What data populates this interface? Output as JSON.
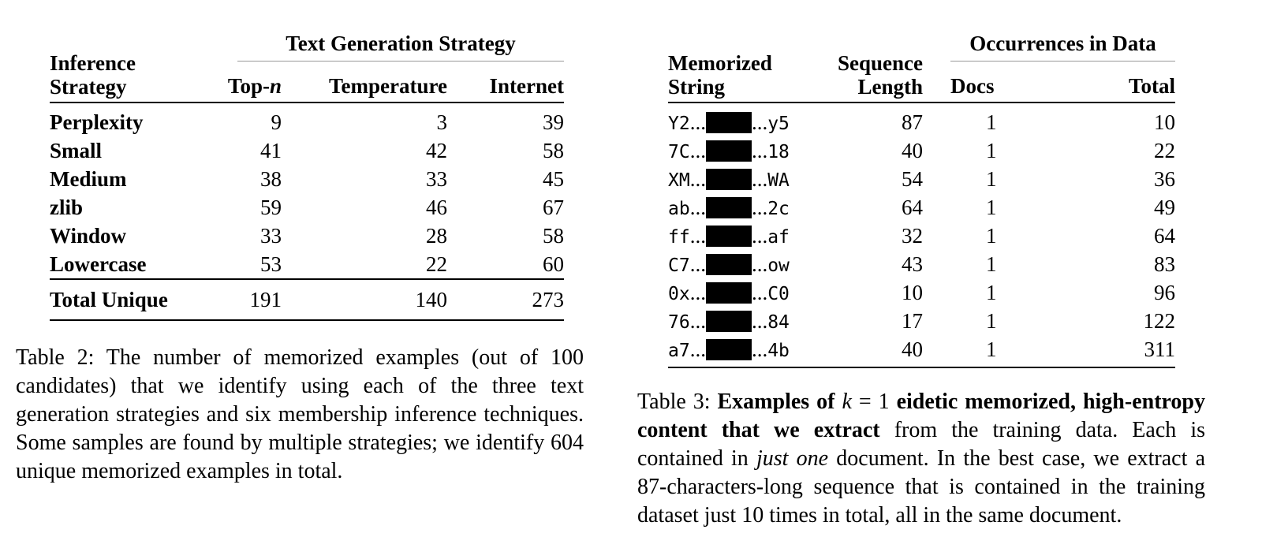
{
  "table2": {
    "corner_header": [
      "Inference",
      "Strategy"
    ],
    "group_header": "Text Generation Strategy",
    "columns": [
      {
        "main": "Top-",
        "italic": "n"
      },
      {
        "main": "Temperature",
        "italic": ""
      },
      {
        "main": "Internet",
        "italic": ""
      }
    ],
    "rows": [
      {
        "label": "Perplexity",
        "values": [
          "9",
          "3",
          "39"
        ]
      },
      {
        "label": "Small",
        "values": [
          "41",
          "42",
          "58"
        ]
      },
      {
        "label": "Medium",
        "values": [
          "38",
          "33",
          "45"
        ]
      },
      {
        "label": "zlib",
        "values": [
          "59",
          "46",
          "67"
        ]
      },
      {
        "label": "Window",
        "values": [
          "33",
          "28",
          "58"
        ]
      },
      {
        "label": "Lowercase",
        "values": [
          "53",
          "22",
          "60"
        ]
      }
    ],
    "total": {
      "label": "Total Unique",
      "values": [
        "191",
        "140",
        "273"
      ]
    },
    "caption": "Table 2: The number of memorized examples (out of 100 candidates) that we identify using each of the three text generation strategies and six membership inference techniques. Some samples are found by multiple strategies; we identify 604 unique memorized examples in total."
  },
  "table3": {
    "headers": {
      "string": [
        "Memorized",
        "String"
      ],
      "length": [
        "Sequence",
        "Length"
      ],
      "group": "Occurrences in Data",
      "docs": "Docs",
      "total": "Total"
    },
    "ellipsis": "...",
    "rows": [
      {
        "prefix": "Y2",
        "suffix": "y5",
        "length": "87",
        "docs": "1",
        "total": "10"
      },
      {
        "prefix": "7C",
        "suffix": "18",
        "length": "40",
        "docs": "1",
        "total": "22"
      },
      {
        "prefix": "XM",
        "suffix": "WA",
        "length": "54",
        "docs": "1",
        "total": "36"
      },
      {
        "prefix": "ab",
        "suffix": "2c",
        "length": "64",
        "docs": "1",
        "total": "49"
      },
      {
        "prefix": "ff",
        "suffix": "af",
        "length": "32",
        "docs": "1",
        "total": "64"
      },
      {
        "prefix": "C7",
        "suffix": "ow",
        "length": "43",
        "docs": "1",
        "total": "83"
      },
      {
        "prefix": "0x",
        "suffix": "C0",
        "length": "10",
        "docs": "1",
        "total": "96"
      },
      {
        "prefix": "76",
        "suffix": "84",
        "length": "17",
        "docs": "1",
        "total": "122"
      },
      {
        "prefix": "a7",
        "suffix": "4b",
        "length": "40",
        "docs": "1",
        "total": "311"
      }
    ],
    "caption": {
      "label": "Table 3:",
      "bold1": "Examples of ",
      "k_var": "k",
      "eq": " = 1 ",
      "bold2": "eidetic memorized, high-entropy content that we extract",
      "rest1": " from the training data. Each is contained in ",
      "emph": "just one",
      "rest2": " document. In the best case, we extract a 87-characters-long sequence that is contained in the training dataset just 10 times in total, all in the same document."
    }
  }
}
